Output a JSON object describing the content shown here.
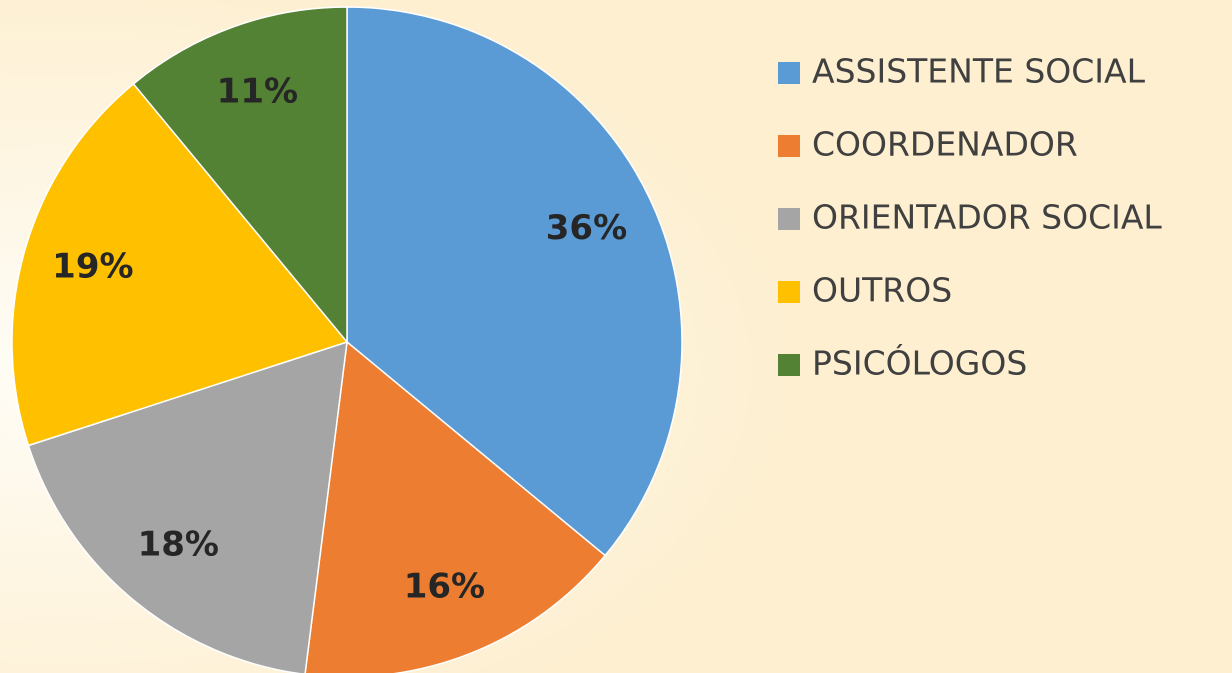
{
  "chart_data": {
    "type": "pie",
    "categories": [
      "ASSISTENTE SOCIAL",
      "COORDENADOR",
      "ORIENTADOR SOCIAL",
      "OUTROS",
      "PSICÓLOGOS"
    ],
    "values": [
      36,
      16,
      18,
      19,
      11
    ],
    "value_labels": [
      "36%",
      "16%",
      "18%",
      "19%",
      "11%"
    ],
    "colors": [
      "#5b9bd5",
      "#ed7d31",
      "#a5a5a5",
      "#ffc000",
      "#548235"
    ],
    "legend": "right"
  }
}
